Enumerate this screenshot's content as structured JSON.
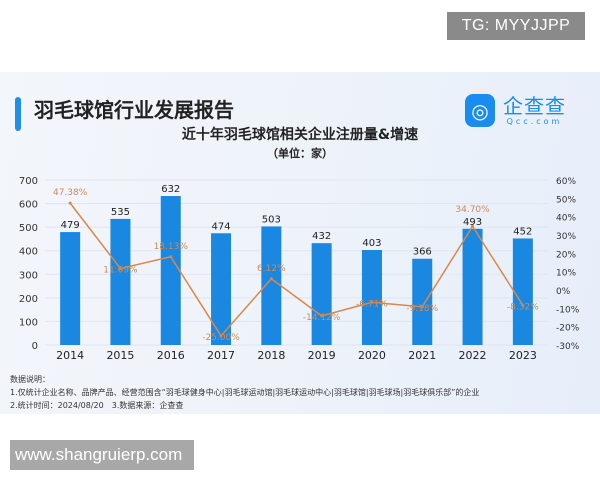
{
  "watermark_top": "TG: MYYJJPP",
  "report_title": "羽毛球馆行业发展报告",
  "logo": {
    "icon_text": "Q",
    "cn": "企查查",
    "en": "Qcc.com"
  },
  "colors": {
    "bar": "#1a87e0",
    "line": "#d9884a",
    "accent": "#1f8fe8"
  },
  "chart_data": {
    "type": "bar+line",
    "title": "近十年羽毛球馆相关企业注册量&增速",
    "subtitle": "（单位：家）",
    "categories": [
      "2014",
      "2015",
      "2016",
      "2017",
      "2018",
      "2019",
      "2020",
      "2021",
      "2022",
      "2023"
    ],
    "series": [
      {
        "type": "bar",
        "axis": "left",
        "values": [
          479,
          535,
          632,
          474,
          503,
          432,
          403,
          366,
          493,
          452
        ]
      },
      {
        "type": "line",
        "axis": "right",
        "values": [
          47.38,
          11.69,
          18.13,
          -25.0,
          6.12,
          -14.12,
          -6.71,
          -9.18,
          34.7,
          -8.32
        ],
        "labels": [
          "47.38%",
          "11.69%",
          "18.13%",
          "-25.00%",
          "6.12%",
          "-14.12%",
          "-6.71%",
          "-9.18%",
          "34.70%",
          "-8.32%"
        ]
      }
    ],
    "left_axis": {
      "ylim": [
        0,
        700
      ],
      "ticks": [
        "0",
        "100",
        "200",
        "300",
        "400",
        "500",
        "600",
        "700"
      ]
    },
    "right_axis": {
      "ylim": [
        -30,
        60
      ],
      "ticks": [
        "-30%",
        "-20%",
        "-10%",
        "0%",
        "10%",
        "20%",
        "30%",
        "40%",
        "50%",
        "60%"
      ]
    },
    "grid": true
  },
  "notes": {
    "heading": "数据说明：",
    "line1": "1.仅统计企业名称、品牌产品、经营范围含“羽毛球健身中心|羽毛球运动馆|羽毛球运动中心|羽毛球馆|羽毛球场|羽毛球俱乐部”的企业",
    "line2": "2.统计时间：2024/08/20　3.数据来源：企查查"
  },
  "watermark_bottom": "www.shangruierp.com"
}
